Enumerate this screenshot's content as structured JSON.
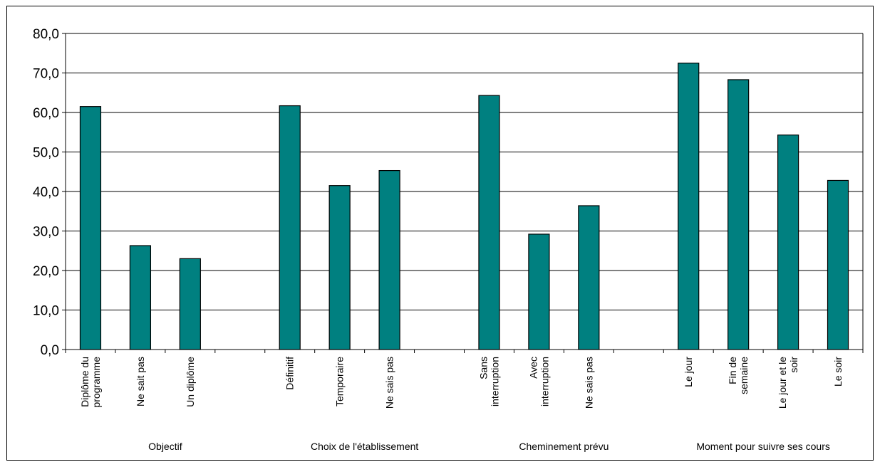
{
  "chart_data": {
    "type": "bar",
    "title": "",
    "xlabel": "",
    "ylabel": "",
    "ylim": [
      0,
      80
    ],
    "yticks": [
      "0,0",
      "10,0",
      "20,0",
      "30,0",
      "40,0",
      "50,0",
      "60,0",
      "70,0",
      "80,0"
    ],
    "grid": true,
    "bar_color": "#008080",
    "groups": [
      {
        "label": "Objectif",
        "categories": [
          [
            "Diplôme du",
            "programme"
          ],
          [
            "Ne sait pas"
          ],
          [
            "Un diplôme"
          ]
        ],
        "values": [
          61.5,
          26.3,
          23.0
        ]
      },
      {
        "label": "Choix de l'établissement",
        "categories": [
          [
            "Définitif"
          ],
          [
            "Temporaire"
          ],
          [
            "Ne sais pas"
          ]
        ],
        "values": [
          61.7,
          41.5,
          45.3
        ]
      },
      {
        "label": "Cheminement prévu",
        "categories": [
          [
            "Sans",
            "interruption"
          ],
          [
            "Avec",
            "interruption"
          ],
          [
            "Ne sais pas"
          ]
        ],
        "values": [
          64.3,
          29.2,
          36.4
        ]
      },
      {
        "label": "Moment pour suivre ses cours",
        "categories": [
          [
            "Le jour"
          ],
          [
            "Fin de",
            "semaine"
          ],
          [
            "Le jour et le",
            "soir"
          ],
          [
            "Le soir"
          ]
        ],
        "values": [
          72.5,
          68.3,
          54.3,
          42.8
        ]
      }
    ]
  }
}
